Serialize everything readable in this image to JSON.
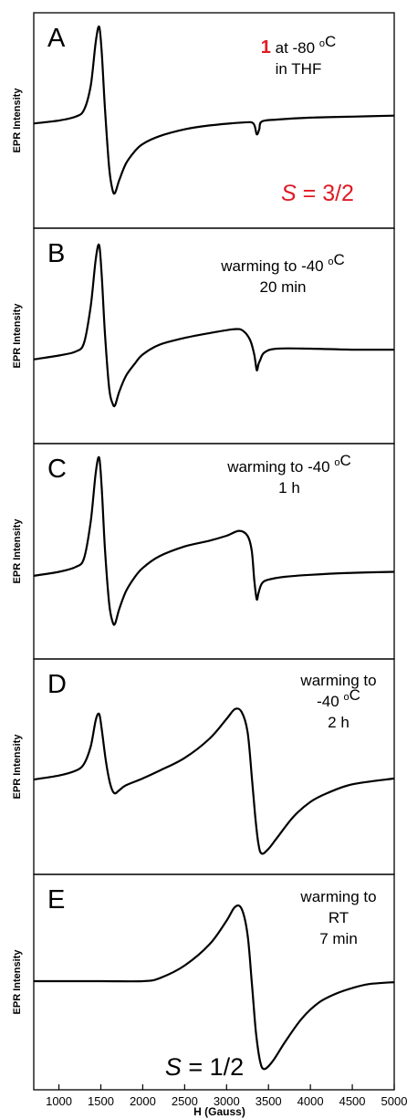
{
  "chart_data": {
    "type": "line",
    "xlabel": "H (Gauss)",
    "ylabel": "EPR Intensity",
    "xlim": [
      700,
      5000
    ],
    "xticks": [
      1000,
      1500,
      2000,
      2500,
      3000,
      3500,
      4000,
      4500,
      5000
    ],
    "ylim": [
      -1,
      1
    ],
    "grid": false,
    "panels": [
      {
        "letter": "A",
        "annotation_lines": [
          [
            {
              "text": "1",
              "color": "#e01b24",
              "bold": true
            },
            {
              "text": " at -80 "
            },
            {
              "text": "o",
              "sup": true
            },
            {
              "text": "C"
            }
          ],
          [
            {
              "text": "in THF"
            }
          ]
        ],
        "spin_label": [
          {
            "text": "S",
            "italic": true,
            "color": "#e01b24"
          },
          {
            "text": " = 3/2",
            "color": "#e01b24"
          }
        ],
        "points": [
          [
            700,
            -0.04
          ],
          [
            1000,
            -0.01
          ],
          [
            1200,
            0.03
          ],
          [
            1300,
            0.1
          ],
          [
            1380,
            0.35
          ],
          [
            1440,
            0.8
          ],
          [
            1480,
            0.95
          ],
          [
            1510,
            0.7
          ],
          [
            1550,
            0.1
          ],
          [
            1600,
            -0.5
          ],
          [
            1640,
            -0.72
          ],
          [
            1670,
            -0.75
          ],
          [
            1720,
            -0.62
          ],
          [
            1800,
            -0.45
          ],
          [
            1900,
            -0.33
          ],
          [
            2000,
            -0.25
          ],
          [
            2200,
            -0.17
          ],
          [
            2500,
            -0.1
          ],
          [
            2800,
            -0.06
          ],
          [
            3200,
            -0.03
          ],
          [
            3320,
            -0.04
          ],
          [
            3360,
            -0.15
          ],
          [
            3390,
            -0.1
          ],
          [
            3420,
            -0.02
          ],
          [
            3600,
            0.0
          ],
          [
            4000,
            0.02
          ],
          [
            4500,
            0.03
          ],
          [
            5000,
            0.04
          ]
        ]
      },
      {
        "letter": "B",
        "annotation_lines": [
          [
            {
              "text": "warming to -40 "
            },
            {
              "text": "o",
              "sup": true
            },
            {
              "text": "C"
            }
          ],
          [
            {
              "text": "20 min"
            }
          ]
        ],
        "points": [
          [
            700,
            -0.25
          ],
          [
            1000,
            -0.21
          ],
          [
            1200,
            -0.17
          ],
          [
            1300,
            -0.08
          ],
          [
            1380,
            0.3
          ],
          [
            1440,
            0.78
          ],
          [
            1480,
            0.92
          ],
          [
            1510,
            0.62
          ],
          [
            1550,
            0.0
          ],
          [
            1600,
            -0.55
          ],
          [
            1640,
            -0.7
          ],
          [
            1670,
            -0.72
          ],
          [
            1720,
            -0.58
          ],
          [
            1800,
            -0.42
          ],
          [
            1900,
            -0.3
          ],
          [
            2000,
            -0.2
          ],
          [
            2200,
            -0.1
          ],
          [
            2500,
            -0.03
          ],
          [
            2800,
            0.02
          ],
          [
            3100,
            0.06
          ],
          [
            3200,
            0.04
          ],
          [
            3280,
            -0.05
          ],
          [
            3330,
            -0.2
          ],
          [
            3360,
            -0.36
          ],
          [
            3380,
            -0.3
          ],
          [
            3400,
            -0.26
          ],
          [
            3450,
            -0.18
          ],
          [
            3600,
            -0.14
          ],
          [
            4000,
            -0.14
          ],
          [
            4500,
            -0.15
          ],
          [
            5000,
            -0.15
          ]
        ]
      },
      {
        "letter": "C",
        "annotation_lines": [
          [
            {
              "text": "warming to -40 "
            },
            {
              "text": "o",
              "sup": true
            },
            {
              "text": "C"
            }
          ],
          [
            {
              "text": "1 h"
            }
          ]
        ],
        "points": [
          [
            700,
            -0.26
          ],
          [
            1000,
            -0.22
          ],
          [
            1200,
            -0.17
          ],
          [
            1300,
            -0.08
          ],
          [
            1380,
            0.3
          ],
          [
            1440,
            0.8
          ],
          [
            1480,
            0.95
          ],
          [
            1510,
            0.65
          ],
          [
            1550,
            0.0
          ],
          [
            1600,
            -0.55
          ],
          [
            1640,
            -0.73
          ],
          [
            1670,
            -0.75
          ],
          [
            1720,
            -0.6
          ],
          [
            1800,
            -0.42
          ],
          [
            1900,
            -0.28
          ],
          [
            2000,
            -0.18
          ],
          [
            2200,
            -0.06
          ],
          [
            2500,
            0.04
          ],
          [
            2800,
            0.1
          ],
          [
            3000,
            0.15
          ],
          [
            3150,
            0.2
          ],
          [
            3250,
            0.15
          ],
          [
            3300,
            0.0
          ],
          [
            3330,
            -0.3
          ],
          [
            3360,
            -0.5
          ],
          [
            3380,
            -0.44
          ],
          [
            3420,
            -0.34
          ],
          [
            3500,
            -0.3
          ],
          [
            3700,
            -0.27
          ],
          [
            4000,
            -0.25
          ],
          [
            4500,
            -0.23
          ],
          [
            5000,
            -0.22
          ]
        ]
      },
      {
        "letter": "D",
        "annotation_lines": [
          [
            {
              "text": "warming to"
            }
          ],
          [
            {
              "text": "-40 "
            },
            {
              "text": "o",
              "sup": true
            },
            {
              "text": "C"
            }
          ],
          [
            {
              "text": "2 h"
            }
          ]
        ],
        "points": [
          [
            700,
            -0.14
          ],
          [
            1000,
            -0.1
          ],
          [
            1200,
            -0.05
          ],
          [
            1300,
            0.02
          ],
          [
            1380,
            0.2
          ],
          [
            1440,
            0.47
          ],
          [
            1480,
            0.53
          ],
          [
            1510,
            0.38
          ],
          [
            1560,
            0.05
          ],
          [
            1610,
            -0.18
          ],
          [
            1660,
            -0.28
          ],
          [
            1720,
            -0.25
          ],
          [
            1800,
            -0.2
          ],
          [
            2000,
            -0.13
          ],
          [
            2200,
            -0.05
          ],
          [
            2500,
            0.08
          ],
          [
            2800,
            0.28
          ],
          [
            3000,
            0.48
          ],
          [
            3100,
            0.58
          ],
          [
            3180,
            0.55
          ],
          [
            3250,
            0.35
          ],
          [
            3300,
            -0.1
          ],
          [
            3340,
            -0.5
          ],
          [
            3380,
            -0.8
          ],
          [
            3420,
            -0.9
          ],
          [
            3500,
            -0.85
          ],
          [
            3600,
            -0.74
          ],
          [
            3800,
            -0.52
          ],
          [
            4000,
            -0.37
          ],
          [
            4200,
            -0.28
          ],
          [
            4500,
            -0.19
          ],
          [
            5000,
            -0.13
          ]
        ]
      },
      {
        "letter": "E",
        "annotation_lines": [
          [
            {
              "text": "warming to"
            }
          ],
          [
            {
              "text": "RT"
            }
          ],
          [
            {
              "text": "7 min"
            }
          ]
        ],
        "spin_label": [
          {
            "text": "S",
            "italic": true
          },
          {
            "text": " = 1/2"
          }
        ],
        "points": [
          [
            700,
            0.0
          ],
          [
            1500,
            0.0
          ],
          [
            2000,
            0.0
          ],
          [
            2200,
            0.03
          ],
          [
            2500,
            0.16
          ],
          [
            2800,
            0.38
          ],
          [
            3000,
            0.62
          ],
          [
            3100,
            0.76
          ],
          [
            3180,
            0.74
          ],
          [
            3250,
            0.48
          ],
          [
            3300,
            0.0
          ],
          [
            3350,
            -0.52
          ],
          [
            3400,
            -0.82
          ],
          [
            3450,
            -0.9
          ],
          [
            3550,
            -0.82
          ],
          [
            3700,
            -0.62
          ],
          [
            3900,
            -0.38
          ],
          [
            4100,
            -0.22
          ],
          [
            4300,
            -0.13
          ],
          [
            4500,
            -0.07
          ],
          [
            4700,
            -0.03
          ],
          [
            5000,
            -0.01
          ]
        ]
      }
    ]
  }
}
